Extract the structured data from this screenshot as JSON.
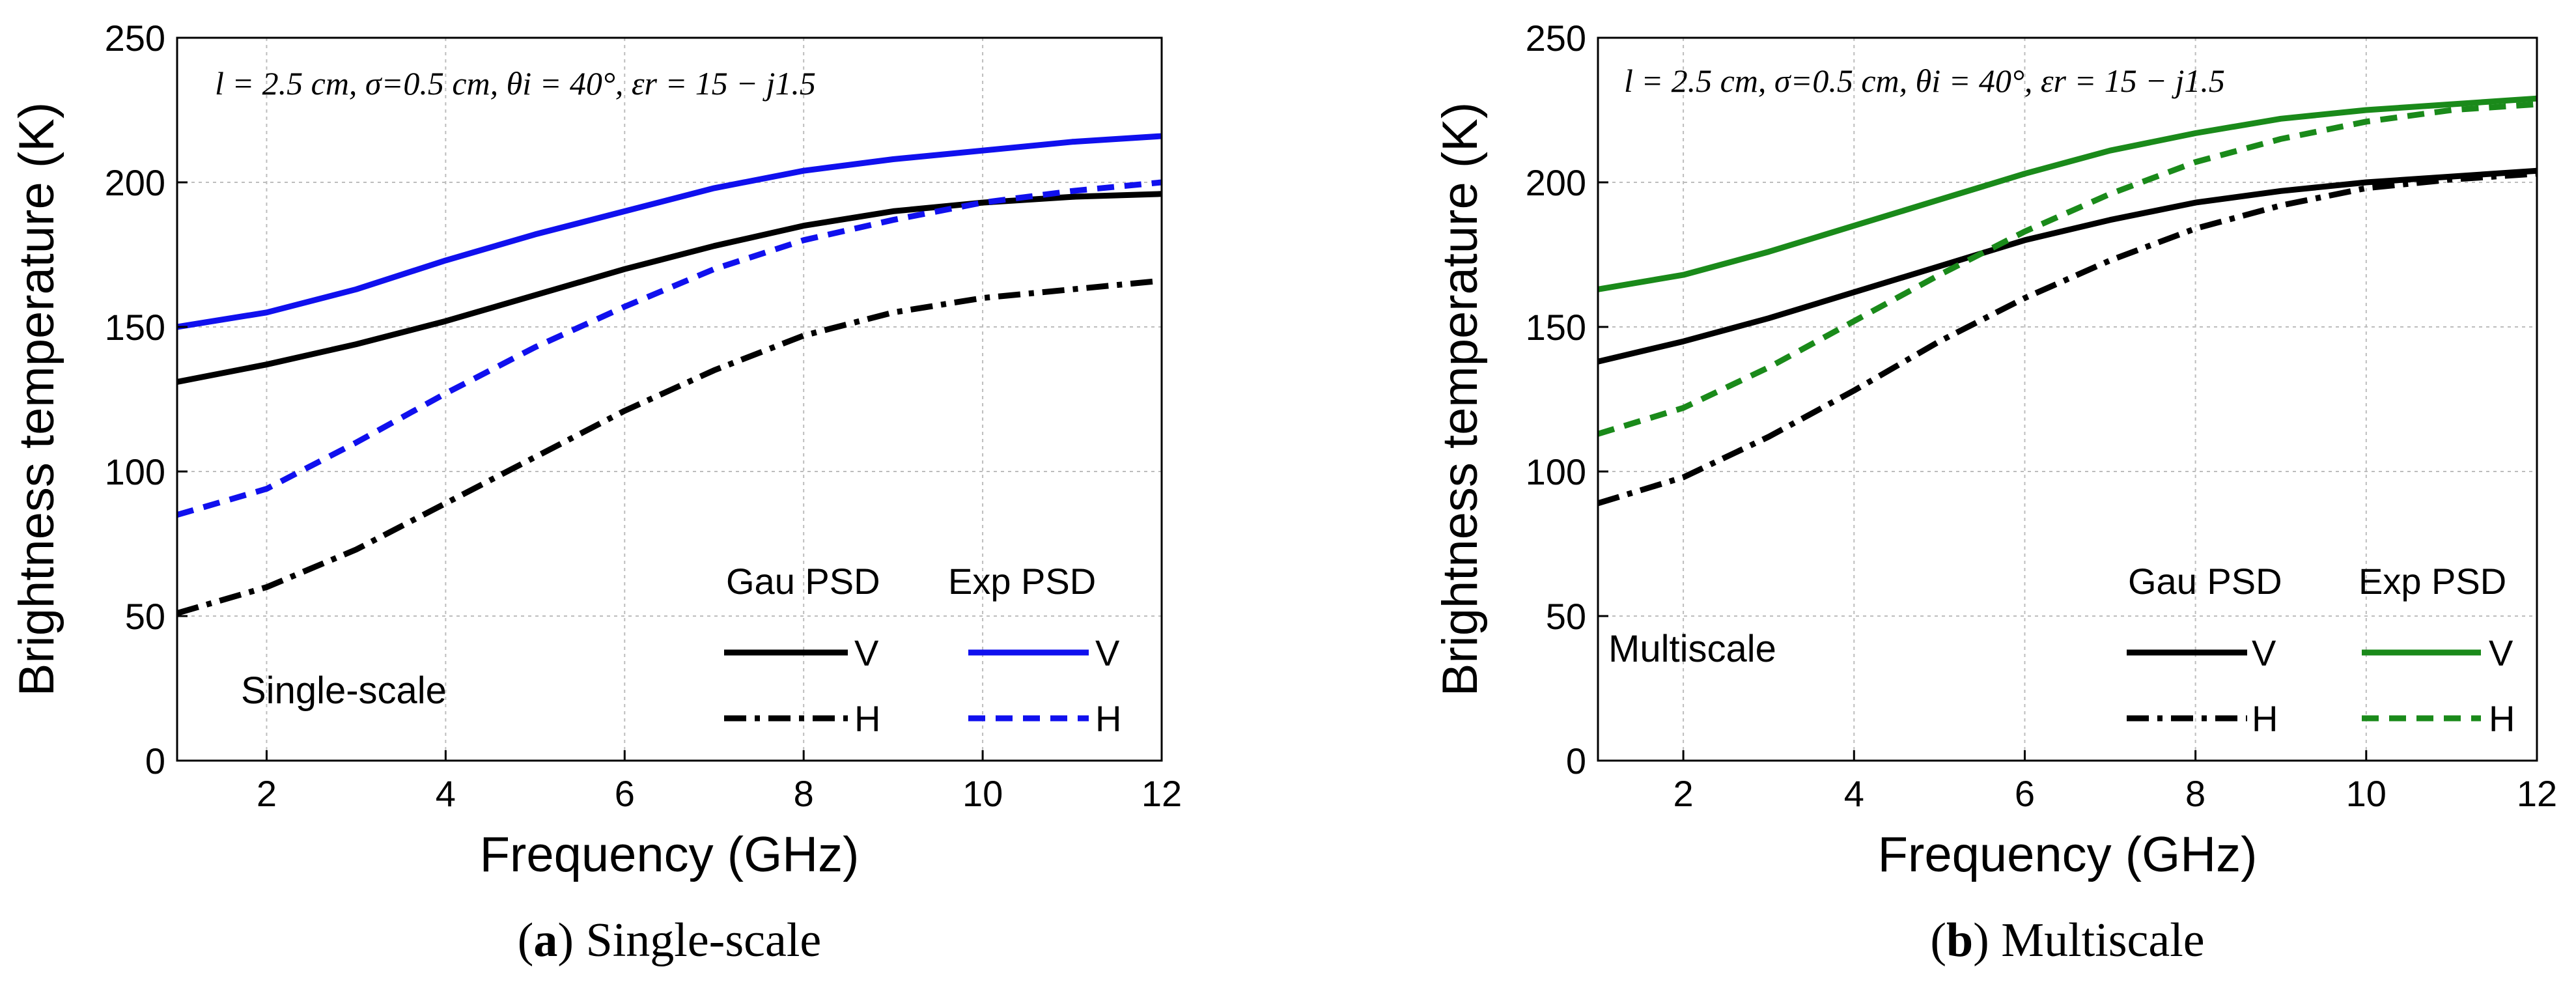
{
  "chart_data": [
    {
      "type": "line",
      "panel_label": "a",
      "caption_text": "Single-scale",
      "annotation": "Single-scale",
      "param_text": "l = 2.5 cm, σ=0.5 cm, θi = 40°, εr = 15 − j1.5",
      "xlabel": "Frequency (GHz)",
      "ylabel": "Brightness temperature (K)",
      "xlim": [
        1,
        12
      ],
      "ylim": [
        0,
        250
      ],
      "xticks": [
        2,
        4,
        6,
        8,
        10,
        12
      ],
      "yticks": [
        0,
        50,
        100,
        150,
        200,
        250
      ],
      "grid": true,
      "legend_position": "bottom-right",
      "legend_headers": [
        "Gau PSD",
        "Exp PSD"
      ],
      "x": [
        1,
        2,
        3,
        4,
        5,
        6,
        7,
        8,
        9,
        10,
        11,
        12
      ],
      "series": [
        {
          "name": "V",
          "group": "Gau PSD",
          "color": "#000000",
          "dash": "solid",
          "values": [
            131,
            137,
            144,
            152,
            161,
            170,
            178,
            185,
            190,
            193,
            195,
            196
          ]
        },
        {
          "name": "H",
          "group": "Gau PSD",
          "color": "#000000",
          "dash": "dashdot",
          "values": [
            51,
            60,
            73,
            89,
            105,
            121,
            135,
            147,
            155,
            160,
            163,
            166
          ]
        },
        {
          "name": "V",
          "group": "Exp PSD",
          "color": "#1010ee",
          "dash": "solid",
          "values": [
            150,
            155,
            163,
            173,
            182,
            190,
            198,
            204,
            208,
            211,
            214,
            216
          ]
        },
        {
          "name": "H",
          "group": "Exp PSD",
          "color": "#1010ee",
          "dash": "dash",
          "values": [
            85,
            94,
            110,
            127,
            143,
            157,
            170,
            180,
            187,
            193,
            197,
            200
          ]
        }
      ]
    },
    {
      "type": "line",
      "panel_label": "b",
      "caption_text": "Multiscale",
      "annotation": "Multiscale",
      "param_text": "l = 2.5 cm, σ=0.5 cm, θi = 40°, εr = 15 − j1.5",
      "xlabel": "Frequency (GHz)",
      "ylabel": "Brightness temperature (K)",
      "xlim": [
        1,
        12
      ],
      "ylim": [
        0,
        250
      ],
      "xticks": [
        2,
        4,
        6,
        8,
        10,
        12
      ],
      "yticks": [
        0,
        50,
        100,
        150,
        200,
        250
      ],
      "grid": true,
      "legend_position": "bottom-right",
      "legend_headers": [
        "Gau PSD",
        "Exp PSD"
      ],
      "x": [
        1,
        2,
        3,
        4,
        5,
        6,
        7,
        8,
        9,
        10,
        11,
        12
      ],
      "series": [
        {
          "name": "V",
          "group": "Gau PSD",
          "color": "#000000",
          "dash": "solid",
          "values": [
            138,
            145,
            153,
            162,
            171,
            180,
            187,
            193,
            197,
            200,
            202,
            204
          ]
        },
        {
          "name": "H",
          "group": "Gau PSD",
          "color": "#000000",
          "dash": "dashdot",
          "values": [
            89,
            98,
            112,
            128,
            145,
            160,
            173,
            184,
            192,
            198,
            201,
            203
          ]
        },
        {
          "name": "V",
          "group": "Exp PSD",
          "color": "#1a8a1a",
          "dash": "solid",
          "values": [
            163,
            168,
            176,
            185,
            194,
            203,
            211,
            217,
            222,
            225,
            227,
            229
          ]
        },
        {
          "name": "H",
          "group": "Exp PSD",
          "color": "#1a8a1a",
          "dash": "dash",
          "values": [
            113,
            122,
            136,
            152,
            168,
            183,
            196,
            207,
            215,
            221,
            225,
            227
          ]
        }
      ]
    }
  ]
}
